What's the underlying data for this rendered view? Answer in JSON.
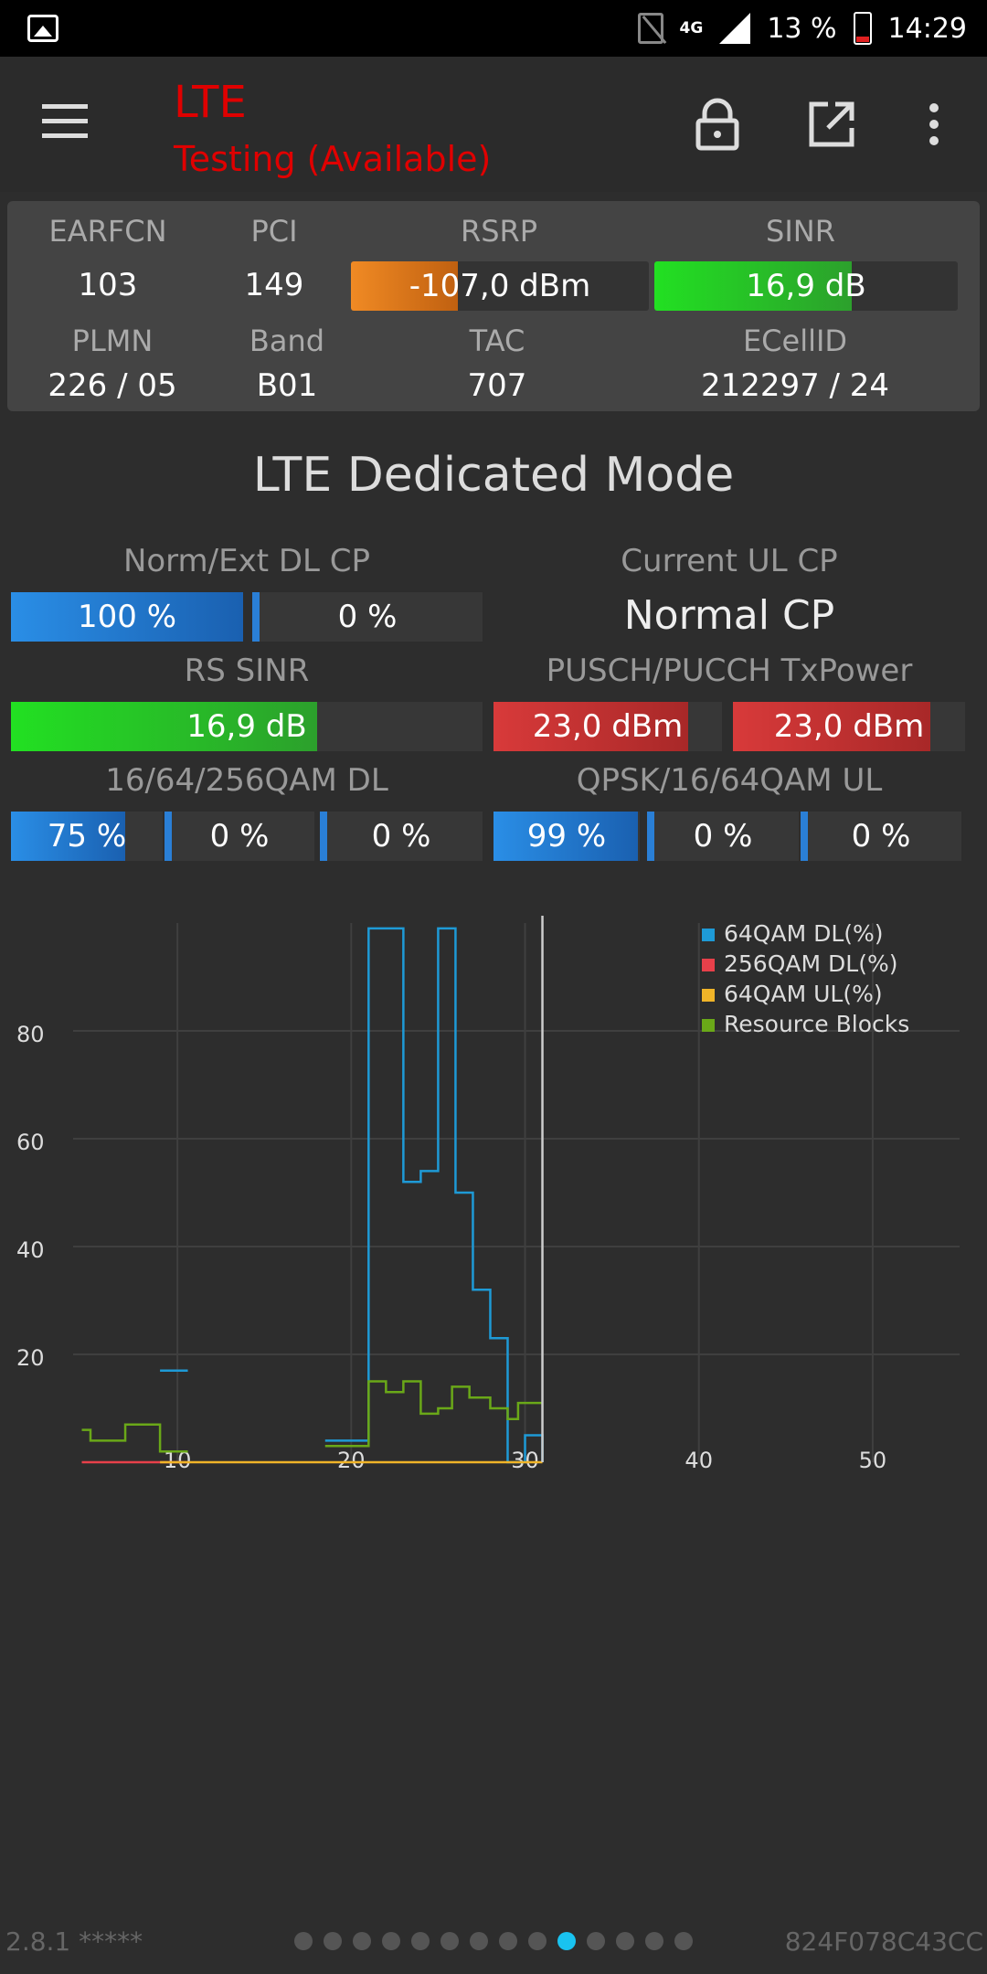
{
  "status_bar": {
    "network_type": "4G",
    "battery": "13 %",
    "time": "14:29"
  },
  "toolbar": {
    "title": "LTE",
    "subtitle": "Testing (Available)",
    "menu_icon": "hamburger-menu-icon",
    "lock_icon": "lock-icon",
    "open_icon": "open-in-new-icon",
    "more_icon": "more-vert-icon"
  },
  "cell": {
    "earfcn_label": "EARFCN",
    "earfcn": "103",
    "pci_label": "PCI",
    "pci": "149",
    "rsrp_label": "RSRP",
    "rsrp": "-107,0 dBm",
    "rsrp_level": 0.36,
    "sinr_label": "SINR",
    "sinr": "16,9 dB",
    "sinr_level": 0.65,
    "plmn_label": "PLMN",
    "plmn": "226 / 05",
    "band_label": "Band",
    "band": "B01",
    "tac_label": "TAC",
    "tac": "707",
    "ecellid_label": "ECellID",
    "ecellid": "212297 / 24"
  },
  "mode_title": "LTE Dedicated Mode",
  "dedicated": {
    "dl_cp_label": "Norm/Ext DL CP",
    "dl_cp_norm": "100 %",
    "dl_cp_norm_level": 1.0,
    "dl_cp_ext": "0 %",
    "dl_cp_ext_level": 0.0,
    "ul_cp_label": "Current UL CP",
    "ul_cp": "Normal CP",
    "rs_sinr_label": "RS SINR",
    "rs_sinr": "16,9 dB",
    "rs_sinr_level": 0.65,
    "txpower_label": "PUSCH/PUCCH TxPower",
    "pusch": "23,0 dBm",
    "pusch_level": 0.85,
    "pucch": "23,0 dBm",
    "pucch_level": 0.85,
    "qam_dl_label": "16/64/256QAM DL",
    "qam16_dl": "75 %",
    "qam16_dl_level": 0.75,
    "qam64_dl": "0 %",
    "qam64_dl_level": 0.0,
    "qam256_dl": "0 %",
    "qam256_dl_level": 0.0,
    "qam_ul_label": "QPSK/16/64QAM UL",
    "qpsk_ul": "99 %",
    "qpsk_ul_level": 0.99,
    "qam16_ul": "0 %",
    "qam16_ul_level": 0.0,
    "qam64_ul": "0 %",
    "qam64_ul_level": 0.0
  },
  "chart_data": {
    "type": "line",
    "x_ticks": [
      "10",
      "20",
      "30",
      "40",
      "50"
    ],
    "y_ticks": [
      "20",
      "40",
      "60",
      "80"
    ],
    "xlim": [
      4,
      55
    ],
    "ylim": [
      0,
      100
    ],
    "legend_position": "top-right",
    "current_x": 31,
    "series": [
      {
        "name": "64QAM DL(%)",
        "color": "#1e9ad6",
        "steps": [
          [
            9,
            17
          ],
          [
            10.6,
            null
          ],
          [
            18.5,
            4
          ],
          [
            21,
            99
          ],
          [
            22,
            99
          ],
          [
            23,
            52
          ],
          [
            24,
            54
          ],
          [
            25,
            99
          ],
          [
            26,
            50
          ],
          [
            27,
            32
          ],
          [
            28,
            23
          ],
          [
            29,
            0
          ],
          [
            30,
            5
          ],
          [
            31,
            0
          ]
        ]
      },
      {
        "name": "256QAM DL(%)",
        "color": "#e8404a",
        "steps": [
          [
            4.5,
            0
          ],
          [
            9,
            0
          ],
          [
            10.6,
            null
          ]
        ]
      },
      {
        "name": "64QAM UL(%)",
        "color": "#f0b428",
        "steps": [
          [
            9,
            0
          ],
          [
            13,
            0
          ],
          [
            18.5,
            0
          ],
          [
            31,
            0
          ]
        ]
      },
      {
        "name": "Resource Blocks",
        "color": "#6aa818",
        "steps": [
          [
            4.5,
            6
          ],
          [
            5,
            4
          ],
          [
            7,
            7
          ],
          [
            9,
            2
          ],
          [
            10.6,
            null
          ],
          [
            18.5,
            3
          ],
          [
            21,
            15
          ],
          [
            22,
            13
          ],
          [
            23,
            15
          ],
          [
            24,
            9
          ],
          [
            25,
            10
          ],
          [
            25.8,
            14
          ],
          [
            26.8,
            12
          ],
          [
            28,
            10
          ],
          [
            29,
            8
          ],
          [
            29.6,
            11
          ],
          [
            31,
            11
          ]
        ]
      }
    ]
  },
  "footer": {
    "version": "2.8.1 *****",
    "device_id": "824F078C43CC",
    "pages": 14,
    "active_page": 9
  }
}
